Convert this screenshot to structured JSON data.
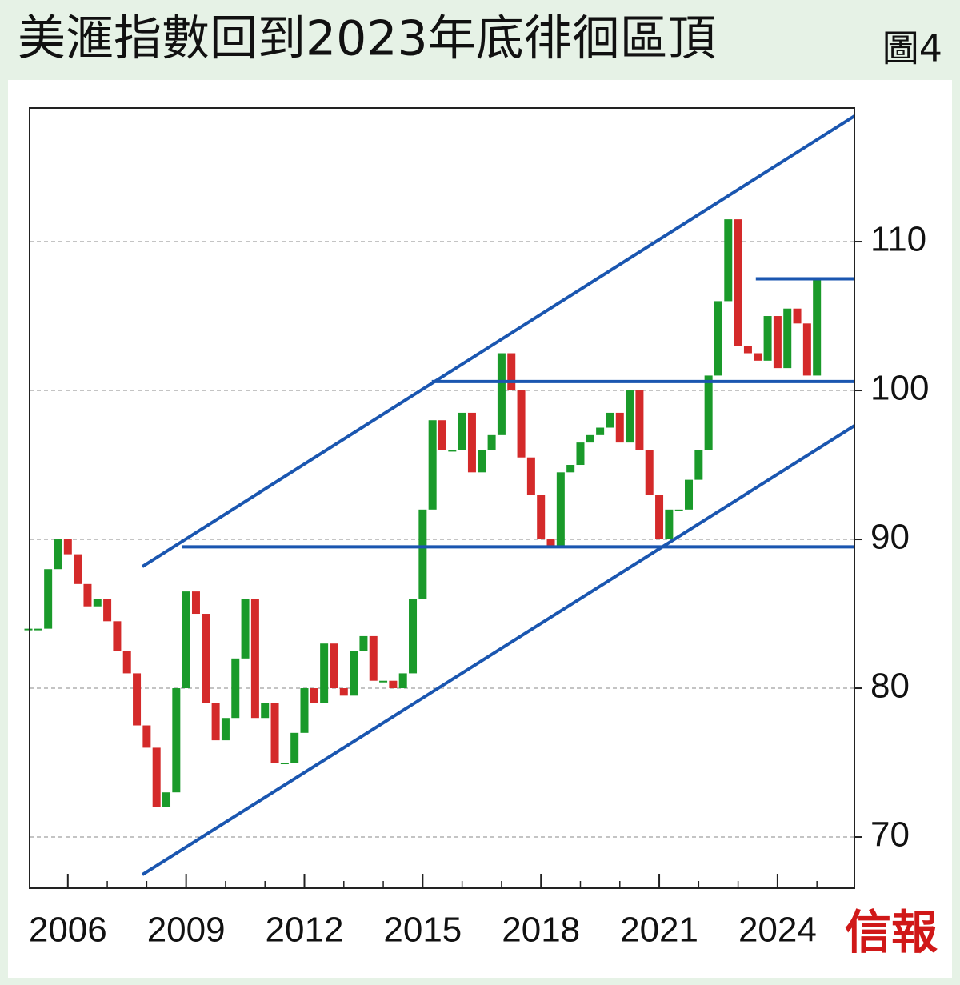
{
  "chart_data": {
    "type": "candle-steps",
    "title": "美滙指數回到2023年底徘徊區頂",
    "figure_label": "圖4",
    "source": "信報",
    "x": [
      2005.0,
      2005.25,
      2005.5,
      2005.75,
      2006.0,
      2006.25,
      2006.5,
      2006.75,
      2007.0,
      2007.25,
      2007.5,
      2007.75,
      2008.0,
      2008.25,
      2008.5,
      2008.75,
      2009.0,
      2009.25,
      2009.5,
      2009.75,
      2010.0,
      2010.25,
      2010.5,
      2010.75,
      2011.0,
      2011.25,
      2011.5,
      2011.75,
      2012.0,
      2012.25,
      2012.5,
      2012.75,
      2013.0,
      2013.25,
      2013.5,
      2013.75,
      2014.0,
      2014.25,
      2014.5,
      2014.75,
      2015.0,
      2015.25,
      2015.5,
      2015.75,
      2016.0,
      2016.25,
      2016.5,
      2016.75,
      2017.0,
      2017.25,
      2017.5,
      2017.75,
      2018.0,
      2018.25,
      2018.5,
      2018.75,
      2019.0,
      2019.25,
      2019.5,
      2019.75,
      2020.0,
      2020.25,
      2020.5,
      2020.75,
      2021.0,
      2021.25,
      2021.5,
      2021.75,
      2022.0,
      2022.25,
      2022.5,
      2022.75,
      2023.0,
      2023.25,
      2023.5,
      2023.75,
      2024.0,
      2024.25,
      2024.5,
      2024.75,
      2025.0
    ],
    "series": [
      {
        "values": [
          84,
          84,
          88,
          90,
          89,
          87,
          85.5,
          86,
          84.5,
          82.5,
          81,
          77.5,
          76,
          72,
          73,
          80,
          86.5,
          85,
          79,
          76.5,
          78,
          82,
          86,
          78,
          79,
          75,
          75,
          77,
          80,
          79,
          83,
          80,
          79.5,
          82.5,
          83.5,
          80.5,
          80.5,
          80,
          81,
          86,
          92,
          98,
          96,
          96,
          98.5,
          94.5,
          96,
          97,
          102.5,
          100,
          95.5,
          93,
          90,
          89.5,
          94.5,
          95,
          96.5,
          97,
          97.5,
          98.5,
          96.5,
          100,
          96,
          93,
          90,
          92,
          92,
          94,
          96,
          101,
          106,
          111.5,
          103,
          102.5,
          102,
          105,
          101.5,
          105.5,
          104.5,
          101,
          107.5
        ],
        "up_color": "#1a9a2a",
        "down_color": "#d42a2a"
      }
    ],
    "lines": [
      {
        "x": [
          2007.89,
          2025.95
        ],
        "y": [
          88.17,
          118.44
        ],
        "color": "#1a56b0"
      },
      {
        "x": [
          2007.89,
          2025.95
        ],
        "y": [
          67.47,
          97.63
        ],
        "color": "#1a56b0"
      },
      {
        "x": [
          2008.9,
          2025.95
        ],
        "y": [
          89.5,
          89.5
        ],
        "color": "#1a56b0"
      },
      {
        "x": [
          2015.23,
          2025.95
        ],
        "y": [
          100.6,
          100.6
        ],
        "color": "#1a56b0"
      },
      {
        "x": [
          2023.45,
          2025.95
        ],
        "y": [
          107.5,
          107.5
        ],
        "color": "#1a56b0"
      }
    ],
    "xlim": [
      2005.03,
      2025.95
    ],
    "xticks": [
      2006,
      2009,
      2012,
      2015,
      2018,
      2021,
      2024
    ],
    "xminor": [
      2007,
      2008,
      2010,
      2011,
      2013,
      2014,
      2016,
      2017,
      2019,
      2020,
      2022,
      2023,
      2025
    ],
    "ylim": [
      66.56,
      118.98
    ],
    "yticks": [
      70,
      80,
      90,
      100,
      110
    ],
    "grid": true
  }
}
